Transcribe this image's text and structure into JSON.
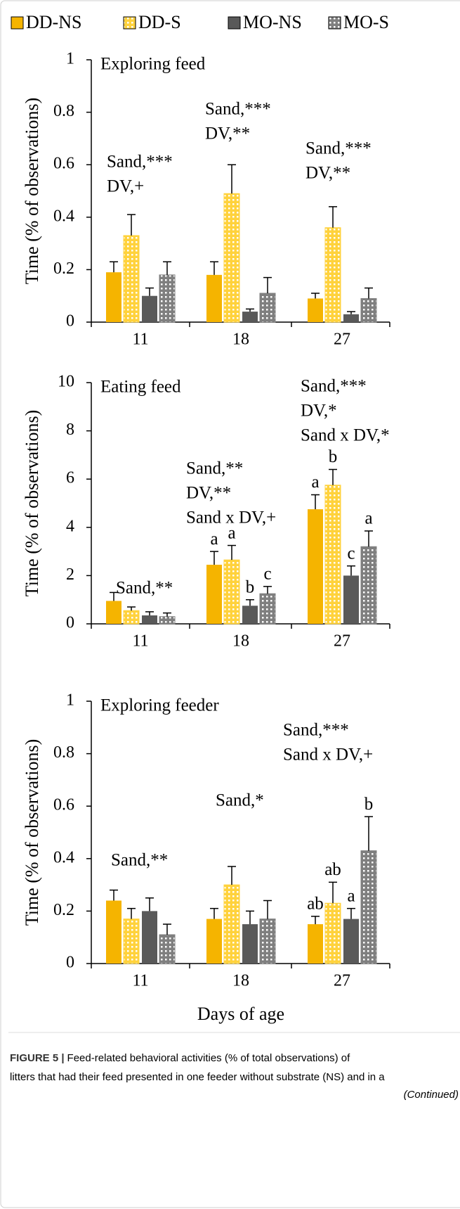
{
  "chart_data": [
    {
      "type": "bar",
      "title": "Exploring feed",
      "y_label": "Time (% of observations)",
      "categories": [
        "11",
        "18",
        "27"
      ],
      "ylim": [
        0,
        1
      ],
      "yticks": [
        0,
        0.2,
        0.4,
        0.6,
        0.8,
        1
      ],
      "annotations": [
        [
          "Sand,***",
          "DV,+"
        ],
        [
          "Sand,***",
          "DV,**"
        ],
        [
          "Sand,***",
          "DV,**"
        ]
      ],
      "series": [
        {
          "name": "DD-NS",
          "color": "#f5b400",
          "pattern": "solid",
          "values": [
            0.19,
            0.18,
            0.09
          ],
          "errors": [
            0.04,
            0.05,
            0.02
          ]
        },
        {
          "name": "DD-S",
          "color": "#ffd23c",
          "pattern": "dotted",
          "values": [
            0.33,
            0.49,
            0.36
          ],
          "errors": [
            0.08,
            0.11,
            0.08
          ]
        },
        {
          "name": "MO-NS",
          "color": "#595959",
          "pattern": "solid",
          "values": [
            0.1,
            0.04,
            0.03
          ],
          "errors": [
            0.03,
            0.01,
            0.01
          ]
        },
        {
          "name": "MO-S",
          "color": "#7f7f7f",
          "pattern": "dotted",
          "values": [
            0.18,
            0.11,
            0.09
          ],
          "errors": [
            0.05,
            0.06,
            0.04
          ]
        }
      ]
    },
    {
      "type": "bar",
      "title": "Eating feed",
      "y_label": "Time (% of observations)",
      "categories": [
        "11",
        "18",
        "27"
      ],
      "ylim": [
        0,
        10
      ],
      "yticks": [
        0,
        2,
        4,
        6,
        8,
        10
      ],
      "annotations": [
        [
          "Sand,**"
        ],
        [
          "Sand,**",
          "DV,**",
          "Sand x DV,+"
        ],
        [
          "Sand,***",
          "DV,*",
          "Sand x DV,*"
        ]
      ],
      "series": [
        {
          "name": "DD-NS",
          "color": "#f5b400",
          "pattern": "solid",
          "values": [
            0.95,
            2.45,
            4.75
          ],
          "errors": [
            0.35,
            0.55,
            0.6
          ],
          "letters": [
            null,
            "a",
            "a"
          ]
        },
        {
          "name": "DD-S",
          "color": "#ffd23c",
          "pattern": "dotted",
          "values": [
            0.55,
            2.65,
            5.75
          ],
          "errors": [
            0.15,
            0.6,
            0.65
          ],
          "letters": [
            null,
            "a",
            "b"
          ]
        },
        {
          "name": "MO-NS",
          "color": "#595959",
          "pattern": "solid",
          "values": [
            0.35,
            0.75,
            2.0
          ],
          "errors": [
            0.15,
            0.25,
            0.4
          ],
          "letters": [
            null,
            "b",
            "c"
          ]
        },
        {
          "name": "MO-S",
          "color": "#7f7f7f",
          "pattern": "dotted",
          "values": [
            0.3,
            1.25,
            3.2
          ],
          "errors": [
            0.15,
            0.3,
            0.65
          ],
          "letters": [
            null,
            "c",
            "a"
          ]
        }
      ]
    },
    {
      "type": "bar",
      "title": "Exploring feeder",
      "y_label": "Time (% of observations)",
      "x_label": "Days of age",
      "categories": [
        "11",
        "18",
        "27"
      ],
      "ylim": [
        0,
        1
      ],
      "yticks": [
        0,
        0.2,
        0.4,
        0.6,
        0.8,
        1
      ],
      "annotations": [
        [
          "Sand,**"
        ],
        [
          "Sand,*"
        ],
        [
          "Sand,***",
          "Sand x DV,+"
        ]
      ],
      "series": [
        {
          "name": "DD-NS",
          "color": "#f5b400",
          "pattern": "solid",
          "values": [
            0.24,
            0.17,
            0.15
          ],
          "errors": [
            0.04,
            0.04,
            0.03
          ],
          "letters": [
            null,
            null,
            "ab"
          ]
        },
        {
          "name": "DD-S",
          "color": "#ffd23c",
          "pattern": "dotted",
          "values": [
            0.17,
            0.3,
            0.23
          ],
          "errors": [
            0.04,
            0.07,
            0.08
          ],
          "letters": [
            null,
            null,
            "ab"
          ]
        },
        {
          "name": "MO-NS",
          "color": "#595959",
          "pattern": "solid",
          "values": [
            0.2,
            0.15,
            0.17
          ],
          "errors": [
            0.05,
            0.05,
            0.04
          ],
          "letters": [
            null,
            null,
            "a"
          ]
        },
        {
          "name": "MO-S",
          "color": "#7f7f7f",
          "pattern": "dotted",
          "values": [
            0.11,
            0.17,
            0.43
          ],
          "errors": [
            0.04,
            0.07,
            0.13
          ],
          "letters": [
            null,
            null,
            "b"
          ]
        }
      ]
    }
  ],
  "caption": {
    "label": "FIGURE 5 |",
    "lines": [
      "Feed-related behavioral activities (% of total observations) of",
      "litters that had their feed presented in one feeder without substrate (NS) and in a"
    ],
    "continued": "(Continued)"
  }
}
